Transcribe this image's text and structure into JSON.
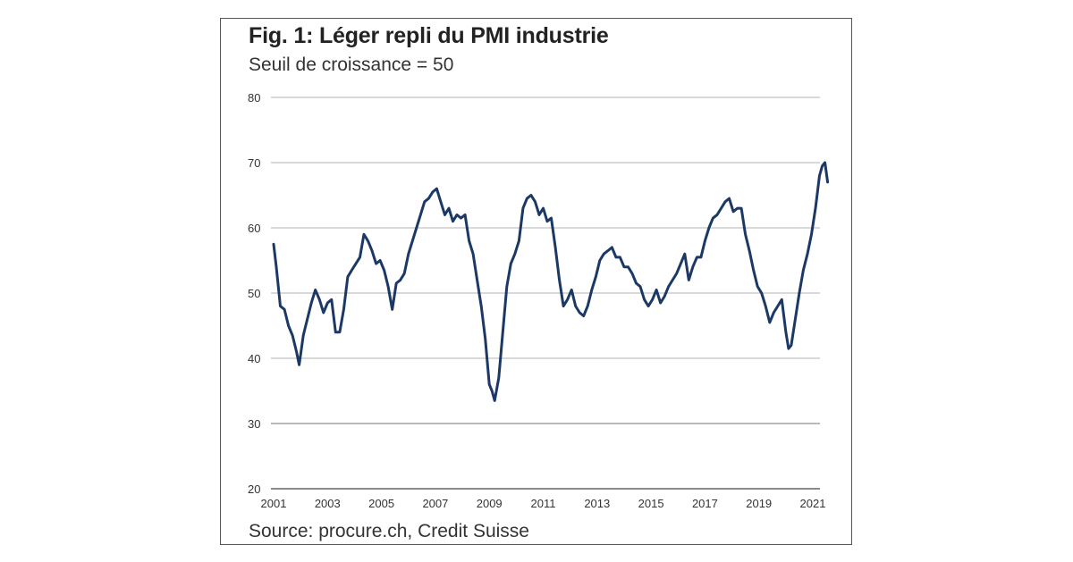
{
  "title": "Fig. 1: Léger repli du PMI industrie",
  "subtitle": "Seuil de croissance = 50",
  "source": "Source: procure.ch, Credit Suisse",
  "colors": {
    "line": "#1c3966",
    "grid": "#9a9a9a",
    "frame": "#555555"
  },
  "chart_data": {
    "type": "line",
    "title": "Fig. 1: Léger repli du PMI industrie",
    "subtitle": "Seuil de croissance = 50",
    "xlabel": "",
    "ylabel": "",
    "ylim": [
      20,
      80
    ],
    "xlim": [
      2001.0,
      2021.6
    ],
    "yticks": [
      20,
      30,
      40,
      50,
      60,
      70,
      80
    ],
    "xticks": [
      "2001",
      "2003",
      "2005",
      "2007",
      "2009",
      "2011",
      "2013",
      "2015",
      "2017",
      "2019",
      "2021"
    ],
    "grid": true,
    "legend": "none",
    "series": [
      {
        "x": [
          2001.0,
          2001.1,
          2001.25,
          2001.4,
          2001.55,
          2001.7,
          2001.85,
          2001.95,
          2002.1,
          2002.25,
          2002.4,
          2002.55,
          2002.7,
          2002.85,
          2003.0,
          2003.15,
          2003.3,
          2003.45,
          2003.6,
          2003.75,
          2003.9,
          2004.05,
          2004.2,
          2004.35,
          2004.5,
          2004.65,
          2004.8,
          2004.95,
          2005.1,
          2005.25,
          2005.4,
          2005.55,
          2005.7,
          2005.85,
          2006.0,
          2006.15,
          2006.3,
          2006.45,
          2006.6,
          2006.75,
          2006.9,
          2007.05,
          2007.2,
          2007.35,
          2007.5,
          2007.65,
          2007.8,
          2007.95,
          2008.1,
          2008.25,
          2008.4,
          2008.55,
          2008.7,
          2008.85,
          2009.0,
          2009.1,
          2009.2,
          2009.35,
          2009.5,
          2009.65,
          2009.8,
          2009.95,
          2010.1,
          2010.25,
          2010.4,
          2010.55,
          2010.7,
          2010.85,
          2011.0,
          2011.15,
          2011.3,
          2011.45,
          2011.6,
          2011.75,
          2011.9,
          2012.05,
          2012.2,
          2012.35,
          2012.5,
          2012.65,
          2012.8,
          2012.95,
          2013.1,
          2013.25,
          2013.4,
          2013.55,
          2013.7,
          2013.85,
          2014.0,
          2014.15,
          2014.3,
          2014.45,
          2014.6,
          2014.75,
          2014.9,
          2015.05,
          2015.2,
          2015.35,
          2015.5,
          2015.65,
          2015.8,
          2015.95,
          2016.1,
          2016.25,
          2016.4,
          2016.55,
          2016.7,
          2016.85,
          2017.0,
          2017.15,
          2017.3,
          2017.45,
          2017.6,
          2017.75,
          2017.9,
          2018.05,
          2018.2,
          2018.35,
          2018.5,
          2018.65,
          2018.8,
          2018.95,
          2019.1,
          2019.25,
          2019.4,
          2019.55,
          2019.7,
          2019.85,
          2020.0,
          2020.1,
          2020.2,
          2020.35,
          2020.5,
          2020.65,
          2020.8,
          2020.95,
          2021.1,
          2021.25,
          2021.35,
          2021.45,
          2021.55
        ],
        "values": [
          57.5,
          54,
          48,
          47.5,
          45,
          43.5,
          41,
          39,
          43.5,
          46,
          48.5,
          50.5,
          49,
          47,
          48.5,
          49,
          44,
          44,
          47.5,
          52.5,
          53.5,
          54.5,
          55.5,
          59,
          58,
          56.5,
          54.5,
          55,
          53.5,
          51,
          47.5,
          51.5,
          52,
          53,
          56,
          58,
          60,
          62,
          64,
          64.5,
          65.5,
          66,
          64,
          62,
          63,
          61,
          62,
          61.5,
          62,
          58,
          56,
          52,
          48,
          43,
          36,
          35,
          33.5,
          37,
          44,
          51,
          54.5,
          56,
          58,
          63,
          64.5,
          65,
          64,
          62,
          63,
          61,
          61.5,
          57,
          52,
          48,
          49,
          50.5,
          48,
          47,
          46.5,
          48,
          50.5,
          52.5,
          55,
          56,
          56.5,
          57,
          55.5,
          55.5,
          54,
          54,
          53,
          51.5,
          51,
          49,
          48,
          49,
          50.5,
          48.5,
          49.5,
          51,
          52,
          53,
          54.5,
          56,
          52,
          54,
          55.5,
          55.5,
          58,
          60,
          61.5,
          62,
          63,
          64,
          64.5,
          62.5,
          63,
          63,
          59,
          56.5,
          53.5,
          51,
          50,
          48,
          45.5,
          47,
          48,
          49,
          44,
          41.5,
          42,
          46,
          50,
          53.5,
          56,
          59,
          63,
          68,
          69.5,
          70,
          67
        ]
      }
    ]
  }
}
